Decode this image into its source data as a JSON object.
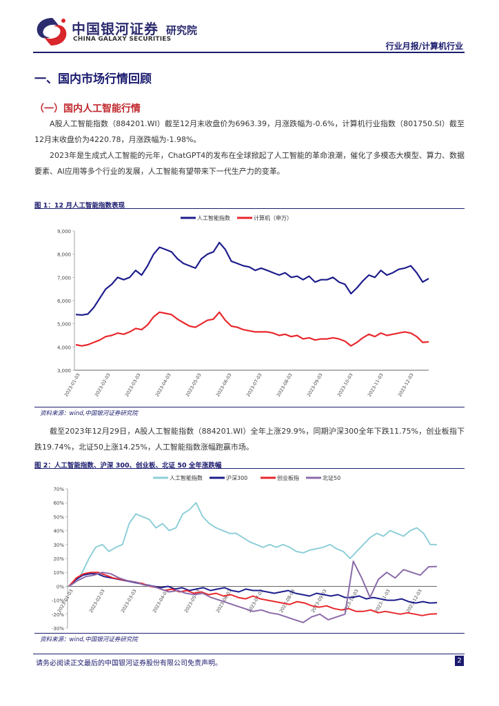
{
  "header": {
    "brand_cn": "中国银河证券",
    "brand_dept": "研究院",
    "brand_en": "CHINA GALAXY SECURITIES",
    "doc_tag": "行业月报/计算机行业"
  },
  "section": {
    "h1": "一、国内市场行情回顾",
    "h2": "（一）国内人工智能行情"
  },
  "paragraphs": [
    "A股人工智能指数（884201.WI）截至12月末收盘价为6963.39，月涨跌幅为-0.6%，计算机行业指数（801750.SI）截至12月末收盘价为4220.78，月涨跌幅为-1.98%。",
    "2023年是生成式人工智能的元年，ChatGPT4的发布在全球掀起了人工智能的革命浪潮，催化了多模态大模型、算力、数据要素、AI应用等多个行业的发展，人工智能有望带来下一代生产力的变革。",
    "截至2023年12月29日，A股人工智能指数（884201.WI）全年上涨29.9%，同期沪深300全年下跌11.75%，创业板指下跌19.74%，北证50上涨14.25%，人工智能指数涨幅跑赢市场。"
  ],
  "figures": [
    {
      "title": "图 1：12 月人工智能指数表现",
      "source": "资料来源：wind,中国银河证券研究院"
    },
    {
      "title": "图 2：人工智能指数、沪深 300、创业板、北证 50 全年涨跌幅",
      "source": "资料来源：wind,中国银河证券研究院"
    }
  ],
  "chart_data": [
    {
      "type": "line",
      "title": "",
      "ylim": [
        3000,
        9000
      ],
      "y_ticks": [
        "3,000",
        "4,000",
        "5,000",
        "6,000",
        "7,000",
        "8,000",
        "9,000"
      ],
      "x_ticks": [
        "2023-01-03",
        "2023-02-03",
        "2023-03-03",
        "2023-04-03",
        "2023-05-03",
        "2023-06-03",
        "2023-07-03",
        "2023-08-03",
        "2023-09-03",
        "2023-10-03",
        "2023-11-03",
        "2023-12-03"
      ],
      "legend_position": "top",
      "series": [
        {
          "name": "人工智能指数",
          "color": "#1c1c8c",
          "values": [
            5400,
            5380,
            5420,
            5700,
            6100,
            6500,
            6700,
            7000,
            6900,
            7000,
            7300,
            7100,
            7500,
            8000,
            8300,
            8200,
            8100,
            7800,
            7600,
            7500,
            7400,
            7800,
            8000,
            8100,
            8500,
            8200,
            7700,
            7600,
            7500,
            7450,
            7300,
            7400,
            7300,
            7200,
            7100,
            7200,
            7000,
            7050,
            6900,
            7050,
            6800,
            6900,
            6900,
            7000,
            6800,
            6700,
            6300,
            6550,
            6850,
            7100,
            7000,
            7300,
            7100,
            7200,
            7350,
            7400,
            7500,
            7200,
            6800,
            6950
          ]
        },
        {
          "name": "计算机（申万）",
          "color": "#e8262b",
          "values": [
            4100,
            4050,
            4100,
            4200,
            4300,
            4450,
            4500,
            4600,
            4550,
            4650,
            4800,
            4750,
            4950,
            5300,
            5500,
            5450,
            5400,
            5200,
            5050,
            4900,
            4850,
            5000,
            5150,
            5200,
            5500,
            5150,
            4900,
            4850,
            4750,
            4700,
            4650,
            4650,
            4650,
            4600,
            4500,
            4550,
            4450,
            4500,
            4350,
            4400,
            4300,
            4350,
            4350,
            4400,
            4350,
            4250,
            4050,
            4200,
            4400,
            4550,
            4450,
            4600,
            4500,
            4550,
            4600,
            4650,
            4600,
            4450,
            4200,
            4220
          ]
        }
      ]
    },
    {
      "type": "line",
      "title": "",
      "ylim": [
        -30,
        70
      ],
      "y_ticks": [
        "-30%",
        "-20%",
        "-10%",
        "0%",
        "10%",
        "20%",
        "30%",
        "40%",
        "50%",
        "60%",
        "70%"
      ],
      "x_ticks": [
        "2023-01-03",
        "2023-02-03",
        "2023-03-03",
        "2023-04-03",
        "2023-05-03",
        "2023-06-03",
        "2023-07-03",
        "2023-08-03",
        "2023-09-03",
        "2023-10-03",
        "2023-11-03",
        "2023-12-03"
      ],
      "legend_position": "top",
      "series": [
        {
          "name": "人工智能指数",
          "color": "#8ecfd8",
          "values": [
            0,
            3,
            10,
            20,
            28,
            30,
            25,
            28,
            30,
            45,
            52,
            50,
            48,
            42,
            45,
            40,
            42,
            52,
            55,
            60,
            50,
            45,
            42,
            40,
            38,
            38,
            35,
            32,
            30,
            28,
            30,
            28,
            30,
            28,
            25,
            24,
            26,
            27,
            28,
            30,
            27,
            25,
            20,
            25,
            30,
            35,
            38,
            36,
            40,
            38,
            36,
            40,
            42,
            38,
            30,
            29.9
          ]
        },
        {
          "name": "沪深300",
          "color": "#1c1c8c",
          "values": [
            0,
            5,
            8,
            9,
            9,
            7,
            6,
            5,
            4,
            3,
            2,
            1,
            0,
            -1,
            0,
            -2,
            -1,
            -3,
            -2,
            -1,
            -3,
            -2,
            -1,
            -3,
            -4,
            -2,
            -3,
            -3,
            -4,
            -5,
            -4,
            -3,
            -5,
            -6,
            -7,
            -5,
            -6,
            -7,
            -6,
            -8,
            -8,
            -7,
            -9,
            -8,
            -9,
            -10,
            -10,
            -9,
            -11,
            -12,
            -11,
            -12,
            -11.75
          ]
        },
        {
          "name": "创业板指",
          "color": "#e8262b",
          "values": [
            0,
            6,
            9,
            10,
            10,
            8,
            6,
            5,
            4,
            3,
            2,
            0,
            -1,
            -3,
            -2,
            -4,
            -3,
            -5,
            -4,
            -6,
            -5,
            -7,
            -6,
            -8,
            -9,
            -7,
            -9,
            -10,
            -11,
            -12,
            -13,
            -11,
            -12,
            -14,
            -15,
            -14,
            -16,
            -17,
            -16,
            -18,
            -18,
            -17,
            -19,
            -18,
            -19,
            -20,
            -19,
            -20,
            -21,
            -20,
            -19.74
          ]
        },
        {
          "name": "北证50",
          "color": "#8a6aa8",
          "values": [
            0,
            4,
            7,
            8,
            10,
            9,
            6,
            4,
            3,
            1,
            0,
            -2,
            -4,
            -3,
            -5,
            -6,
            -5,
            -8,
            -10,
            -12,
            -14,
            -16,
            -18,
            -17,
            -19,
            -20,
            -22,
            -24,
            -26,
            -22,
            -20,
            -24,
            -22,
            -20,
            18,
            6,
            -8,
            5,
            10,
            6,
            12,
            10,
            8,
            14,
            14.25
          ]
        }
      ]
    }
  ]
}
